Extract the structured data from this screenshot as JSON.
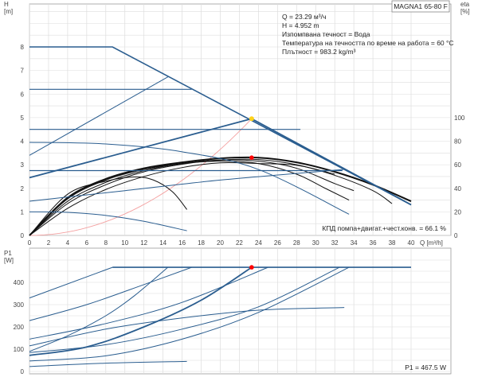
{
  "chart_data": [
    {
      "type": "line",
      "title": "MAGNA1 65-80 F",
      "ylabel": "H",
      "yunit": "[m]",
      "y2label": "eta",
      "y2unit": "[%]",
      "xlabel": "Q [m³/h]",
      "xlim": [
        0,
        40
      ],
      "ylim": [
        0,
        8
      ],
      "y2lim": [
        0,
        100
      ],
      "xticks": [
        0,
        2,
        4,
        6,
        8,
        10,
        12,
        14,
        16,
        18,
        20,
        22,
        24,
        26,
        28,
        30,
        32,
        34,
        36,
        38,
        40
      ],
      "yticks": [
        0,
        1,
        2,
        3,
        4,
        5,
        6,
        7,
        8
      ],
      "y2ticks": [
        0,
        20,
        40,
        60,
        80,
        100
      ],
      "grid": true,
      "info": {
        "q": "Q = 23.29 м³/ч",
        "h": "H = 4.952 m",
        "fluid": "Изпомпвана течност = Вода",
        "temp": "Температура на течността по време на работа = 60 °C",
        "density": "Плътност = 983.2 kg/m³"
      },
      "efficiency_label": "КПД помпа+двигат.+чест.конв. = 66.1 %",
      "duty_point": {
        "q": 23.29,
        "h": 4.952,
        "eta": 66.1
      },
      "system_curve": {
        "q_end": 23.29,
        "h_end": 4.952,
        "color": "#f4a0a0"
      },
      "blue_series": [
        {
          "name": "max-curve",
          "width": 1.6,
          "points": [
            [
              0,
              8
            ],
            [
              8.7,
              8
            ],
            [
              40,
              1.3
            ]
          ]
        },
        {
          "name": "const-pressure-6.2",
          "width": 1.2,
          "points": [
            [
              0,
              6.2
            ],
            [
              17,
              6.2
            ]
          ]
        },
        {
          "name": "const-pressure-4.5",
          "width": 1.2,
          "points": [
            [
              0,
              4.5
            ],
            [
              28.4,
              4.5
            ]
          ]
        },
        {
          "name": "const-pressure-2.75",
          "width": 1.2,
          "points": [
            [
              0,
              2.75
            ],
            [
              32.8,
              2.75
            ]
          ]
        },
        {
          "name": "prop-pressure-high",
          "width": 1,
          "points": [
            [
              0,
              3.4
            ],
            [
              14.6,
              6.75
            ]
          ]
        },
        {
          "name": "prop-pressure-duty",
          "width": 1.8,
          "points": [
            [
              0,
              2.45
            ],
            [
              23.29,
              4.952
            ]
          ]
        },
        {
          "name": "prop-pressure-low",
          "width": 1,
          "points": [
            [
              0,
              1.45
            ],
            [
              10,
              1.9
            ],
            [
              20,
              2.35
            ],
            [
              33,
              2.8
            ]
          ]
        },
        {
          "name": "autoadapt-curve",
          "width": 1,
          "points": [
            [
              0,
              3.95
            ],
            [
              8,
              3.88
            ],
            [
              16,
              3.55
            ],
            [
              24,
              2.8
            ],
            [
              33.5,
              0.9
            ]
          ]
        },
        {
          "name": "min-curve",
          "width": 1,
          "points": [
            [
              0,
              1.0
            ],
            [
              4,
              0.98
            ],
            [
              8,
              0.85
            ],
            [
              12,
              0.6
            ],
            [
              16.5,
              0.2
            ]
          ]
        }
      ],
      "black_series": [
        {
          "name": "eta-duty",
          "width": 2,
          "points": [
            [
              0,
              0
            ],
            [
              4,
              1.6
            ],
            [
              8,
              2.4
            ],
            [
              12,
              2.85
            ],
            [
              16,
              3.1
            ],
            [
              20,
              3.27
            ],
            [
              24,
              3.3
            ],
            [
              28,
              3.1
            ],
            [
              32,
              2.7
            ],
            [
              36,
              2.15
            ],
            [
              40,
              1.45
            ]
          ]
        },
        {
          "name": "eta-1",
          "width": 1,
          "points": [
            [
              0,
              0
            ],
            [
              4,
              1.75
            ],
            [
              8,
              2.3
            ],
            [
              11,
              2.48
            ],
            [
              13,
              2.35
            ],
            [
              15,
              1.85
            ],
            [
              16.5,
              1.1
            ]
          ]
        },
        {
          "name": "eta-2",
          "width": 1,
          "points": [
            [
              0,
              0
            ],
            [
              4,
              1.55
            ],
            [
              8,
              2.35
            ],
            [
              12,
              2.8
            ],
            [
              16,
              3.05
            ],
            [
              20,
              3.15
            ],
            [
              24,
              3.05
            ],
            [
              28,
              2.6
            ],
            [
              31,
              2.0
            ],
            [
              33.5,
              1.5
            ]
          ]
        },
        {
          "name": "eta-3",
          "width": 1,
          "points": [
            [
              0,
              0
            ],
            [
              4,
              1.35
            ],
            [
              8,
              2.15
            ],
            [
              12,
              2.7
            ],
            [
              16,
              3.02
            ],
            [
              20,
              3.2
            ],
            [
              24,
              3.22
            ],
            [
              28,
              3.0
            ],
            [
              32,
              2.55
            ],
            [
              36,
              1.9
            ],
            [
              38,
              1.35
            ]
          ]
        },
        {
          "name": "eta-4",
          "width": 1,
          "points": [
            [
              0,
              0
            ],
            [
              4,
              1.15
            ],
            [
              8,
              1.95
            ],
            [
              12,
              2.5
            ],
            [
              16,
              2.88
            ],
            [
              20,
              3.08
            ],
            [
              24,
              3.05
            ],
            [
              28,
              2.98
            ],
            [
              32,
              2.6
            ]
          ]
        },
        {
          "name": "eta-5",
          "width": 1,
          "points": [
            [
              0,
              0
            ],
            [
              4,
              1.45
            ],
            [
              8,
              2.25
            ],
            [
              12,
              2.75
            ],
            [
              16,
              3.05
            ],
            [
              20,
              3.2
            ],
            [
              24,
              3.15
            ],
            [
              28,
              2.85
            ],
            [
              32,
              2.2
            ],
            [
              34,
              1.9
            ]
          ]
        }
      ]
    },
    {
      "type": "line",
      "ylabel": "P1",
      "yunit": "[W]",
      "xlim": [
        0,
        40
      ],
      "ylim": [
        0,
        500
      ],
      "yticks": [
        0,
        100,
        200,
        300,
        400
      ],
      "grid": true,
      "power_label": "P1 = 467.5 W",
      "duty_point": {
        "q": 23.29,
        "p1": 467.5
      },
      "series": [
        {
          "name": "max-power",
          "width": 1.6,
          "points": [
            [
              8.7,
              467.5
            ],
            [
              40,
              467.5
            ]
          ]
        },
        {
          "name": "p-1",
          "width": 1,
          "points": [
            [
              0,
              330
            ],
            [
              8.7,
              467.5
            ]
          ]
        },
        {
          "name": "p-2",
          "width": 1,
          "points": [
            [
              0,
              228
            ],
            [
              6,
              300
            ],
            [
              12,
              390
            ],
            [
              17,
              467.5
            ]
          ]
        },
        {
          "name": "p-3",
          "width": 1,
          "points": [
            [
              0,
              90
            ],
            [
              4,
              160
            ],
            [
              8,
              250
            ],
            [
              11,
              340
            ],
            [
              14.5,
              467.5
            ]
          ]
        },
        {
          "name": "p-4",
          "width": 1,
          "points": [
            [
              0,
              145
            ],
            [
              8,
              215
            ],
            [
              16,
              310
            ],
            [
              25,
              467.5
            ]
          ]
        },
        {
          "name": "p-5",
          "width": 1,
          "points": [
            [
              0,
              115
            ],
            [
              8,
              190
            ],
            [
              16,
              240
            ],
            [
              24,
              275
            ],
            [
              33,
              287
            ]
          ]
        },
        {
          "name": "p-duty",
          "width": 1.8,
          "points": [
            [
              0,
              72
            ],
            [
              6,
              110
            ],
            [
              12,
              200
            ],
            [
              18,
              320
            ],
            [
              23.29,
              467.5
            ]
          ]
        },
        {
          "name": "p-6",
          "width": 1,
          "points": [
            [
              0,
              85
            ],
            [
              8,
              120
            ],
            [
              16,
              190
            ],
            [
              24,
              290
            ],
            [
              32.5,
              467.5
            ]
          ]
        },
        {
          "name": "p-7",
          "width": 1,
          "points": [
            [
              0,
              47
            ],
            [
              8,
              70
            ],
            [
              16,
              145
            ],
            [
              24,
              265
            ],
            [
              33.5,
              467.5
            ]
          ]
        },
        {
          "name": "p-8",
          "width": 1,
          "points": [
            [
              0,
              22
            ],
            [
              8,
              37
            ],
            [
              16.5,
              45
            ]
          ]
        }
      ]
    }
  ],
  "colors": {
    "blue": "#2a5d8f",
    "black": "#111111",
    "grid": "#dddddd",
    "axis": "#999999",
    "duty": "#ff0000",
    "yellow": "#ffd21a"
  }
}
